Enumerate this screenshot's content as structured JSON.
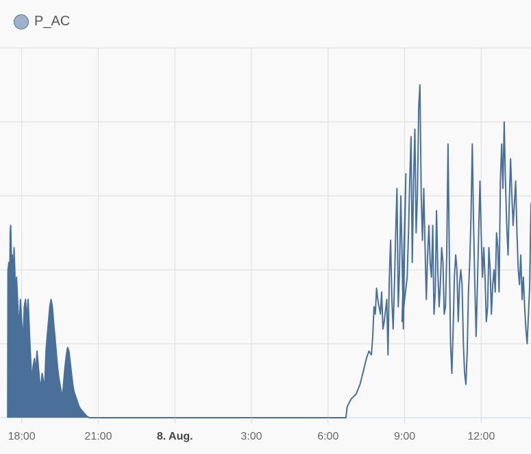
{
  "legend": {
    "label": "P_AC",
    "swatch_color": "#9fb2cc",
    "stroke_color": "#4a6f98"
  },
  "chart_data": {
    "type": "area",
    "series": [
      {
        "name": "P_AC",
        "color": "#4a7099"
      }
    ],
    "x_ticks": [
      {
        "label": "18:00",
        "hour": 18,
        "bold": false
      },
      {
        "label": "21:00",
        "hour": 21,
        "bold": false
      },
      {
        "label": "8. Aug.",
        "hour": 24,
        "bold": true
      },
      {
        "label": "3:00",
        "hour": 27,
        "bold": false
      },
      {
        "label": "6:00",
        "hour": 30,
        "bold": false
      },
      {
        "label": "9:00",
        "hour": 33,
        "bold": false
      },
      {
        "label": "12:00",
        "hour": 36,
        "bold": false
      }
    ],
    "xlim_hours": [
      17.15,
      37.95
    ],
    "ylim": [
      0,
      5
    ],
    "y_gridlines": 5,
    "y_axis_labels_visible": false,
    "grid": true,
    "legend_position": "top-left",
    "data": [
      [
        17.45,
        0
      ],
      [
        17.46,
        2.0
      ],
      [
        17.5,
        2.1
      ],
      [
        17.53,
        1.8
      ],
      [
        17.55,
        2.5
      ],
      [
        17.57,
        2.6
      ],
      [
        17.6,
        2.1
      ],
      [
        17.63,
        2.2
      ],
      [
        17.67,
        1.8
      ],
      [
        17.7,
        2.3
      ],
      [
        17.73,
        2.0
      ],
      [
        17.77,
        1.5
      ],
      [
        17.8,
        1.9
      ],
      [
        17.85,
        1.5
      ],
      [
        17.9,
        1.2
      ],
      [
        17.95,
        1.6
      ],
      [
        18.0,
        1.3
      ],
      [
        18.05,
        1.0
      ],
      [
        18.1,
        1.5
      ],
      [
        18.15,
        1.6
      ],
      [
        18.2,
        1.3
      ],
      [
        18.25,
        1.6
      ],
      [
        18.3,
        1.2
      ],
      [
        18.35,
        0.8
      ],
      [
        18.4,
        0.5
      ],
      [
        18.45,
        0.7
      ],
      [
        18.5,
        0.8
      ],
      [
        18.55,
        0.6
      ],
      [
        18.6,
        0.9
      ],
      [
        18.65,
        0.7
      ],
      [
        18.7,
        0.5
      ],
      [
        18.75,
        0.4
      ],
      [
        18.8,
        0.6
      ],
      [
        18.85,
        0.5
      ],
      [
        18.9,
        0.4
      ],
      [
        18.95,
        0.9
      ],
      [
        19.0,
        1.1
      ],
      [
        19.05,
        1.3
      ],
      [
        19.1,
        1.5
      ],
      [
        19.15,
        1.6
      ],
      [
        19.2,
        1.5
      ],
      [
        19.25,
        1.3
      ],
      [
        19.3,
        1.1
      ],
      [
        19.35,
        0.9
      ],
      [
        19.4,
        0.7
      ],
      [
        19.45,
        0.55
      ],
      [
        19.5,
        0.45
      ],
      [
        19.55,
        0.35
      ],
      [
        19.6,
        0.3
      ],
      [
        19.65,
        0.5
      ],
      [
        19.7,
        0.7
      ],
      [
        19.75,
        0.85
      ],
      [
        19.8,
        0.95
      ],
      [
        19.85,
        0.9
      ],
      [
        19.9,
        0.75
      ],
      [
        19.95,
        0.6
      ],
      [
        20.0,
        0.45
      ],
      [
        20.05,
        0.35
      ],
      [
        20.1,
        0.3
      ],
      [
        20.15,
        0.25
      ],
      [
        20.2,
        0.2
      ],
      [
        20.25,
        0.15
      ],
      [
        20.3,
        0.12
      ],
      [
        20.35,
        0.1
      ],
      [
        20.4,
        0.08
      ],
      [
        20.45,
        0.06
      ],
      [
        20.5,
        0.04
      ],
      [
        20.55,
        0.02
      ],
      [
        20.6,
        0.01
      ],
      [
        20.65,
        0
      ],
      [
        29.5,
        0
      ],
      [
        30.7,
        0
      ],
      [
        30.75,
        0.15
      ],
      [
        30.9,
        0.25
      ],
      [
        31.1,
        0.32
      ],
      [
        31.25,
        0.45
      ],
      [
        31.4,
        0.65
      ],
      [
        31.5,
        0.8
      ],
      [
        31.6,
        0.9
      ],
      [
        31.7,
        0.85
      ],
      [
        31.75,
        1.1
      ],
      [
        31.8,
        1.5
      ],
      [
        31.85,
        1.4
      ],
      [
        31.9,
        1.75
      ],
      [
        31.95,
        1.6
      ],
      [
        32.0,
        1.5
      ],
      [
        32.05,
        1.4
      ],
      [
        32.1,
        1.7
      ],
      [
        32.15,
        1.2
      ],
      [
        32.2,
        1.3
      ],
      [
        32.3,
        1.6
      ],
      [
        32.35,
        0.85
      ],
      [
        32.4,
        1.9
      ],
      [
        32.45,
        2.4
      ],
      [
        32.5,
        1.6
      ],
      [
        32.55,
        1.2
      ],
      [
        32.6,
        1.8
      ],
      [
        32.65,
        2.5
      ],
      [
        32.7,
        3.1
      ],
      [
        32.75,
        1.5
      ],
      [
        32.8,
        2.0
      ],
      [
        32.85,
        3.0
      ],
      [
        32.9,
        2.2
      ],
      [
        32.95,
        1.2
      ],
      [
        33.0,
        2.4
      ],
      [
        33.05,
        3.3
      ],
      [
        32.9,
        1.3
      ],
      [
        33.1,
        1.9
      ],
      [
        33.15,
        2.5
      ],
      [
        33.2,
        3.2
      ],
      [
        33.25,
        3.8
      ],
      [
        33.3,
        2.1
      ],
      [
        33.35,
        3.2
      ],
      [
        33.4,
        3.9
      ],
      [
        33.45,
        2.5
      ],
      [
        33.5,
        3.0
      ],
      [
        33.55,
        4.2
      ],
      [
        33.6,
        4.5
      ],
      [
        33.65,
        3.0
      ],
      [
        33.7,
        2.4
      ],
      [
        33.75,
        3.1
      ],
      [
        33.8,
        2.3
      ],
      [
        33.85,
        1.6
      ],
      [
        33.9,
        2.2
      ],
      [
        33.95,
        2.6
      ],
      [
        34.0,
        2.1
      ],
      [
        34.05,
        1.9
      ],
      [
        34.1,
        2.6
      ],
      [
        34.15,
        1.4
      ],
      [
        34.2,
        1.7
      ],
      [
        34.25,
        2.8
      ],
      [
        34.3,
        2.0
      ],
      [
        34.35,
        1.5
      ],
      [
        34.4,
        1.8
      ],
      [
        34.45,
        2.3
      ],
      [
        34.5,
        2.1
      ],
      [
        34.55,
        1.4
      ],
      [
        34.6,
        1.5
      ],
      [
        34.65,
        2.2
      ],
      [
        34.7,
        3.7
      ],
      [
        34.75,
        2.2
      ],
      [
        34.8,
        1.0
      ],
      [
        34.85,
        0.6
      ],
      [
        34.9,
        1.2
      ],
      [
        34.95,
        1.9
      ],
      [
        35.0,
        2.2
      ],
      [
        35.05,
        2.0
      ],
      [
        35.1,
        1.3
      ],
      [
        35.15,
        1.8
      ],
      [
        35.2,
        2.0
      ],
      [
        35.25,
        1.8
      ],
      [
        35.3,
        1.0
      ],
      [
        35.35,
        0.6
      ],
      [
        35.4,
        0.45
      ],
      [
        35.45,
        0.9
      ],
      [
        35.5,
        1.7
      ],
      [
        35.55,
        2.1
      ],
      [
        35.6,
        2.7
      ],
      [
        35.65,
        3.7
      ],
      [
        35.7,
        2.6
      ],
      [
        35.75,
        1.8
      ],
      [
        35.8,
        1.1
      ],
      [
        35.85,
        1.8
      ],
      [
        35.9,
        2.5
      ],
      [
        35.95,
        3.2
      ],
      [
        36.0,
        2.5
      ],
      [
        36.05,
        1.9
      ],
      [
        36.1,
        2.3
      ],
      [
        36.15,
        1.9
      ],
      [
        36.2,
        1.3
      ],
      [
        36.25,
        1.5
      ],
      [
        36.3,
        2.3
      ],
      [
        36.35,
        2.0
      ],
      [
        36.4,
        1.4
      ],
      [
        36.45,
        1.8
      ],
      [
        36.5,
        2.0
      ],
      [
        36.55,
        1.7
      ],
      [
        36.6,
        2.5
      ],
      [
        36.65,
        2.3
      ],
      [
        36.7,
        1.7
      ],
      [
        36.75,
        3.2
      ],
      [
        36.8,
        3.7
      ],
      [
        36.85,
        3.1
      ],
      [
        36.9,
        4.0
      ],
      [
        36.95,
        3.2
      ],
      [
        37.0,
        2.6
      ],
      [
        37.05,
        2.2
      ],
      [
        37.1,
        2.9
      ],
      [
        37.15,
        3.5
      ],
      [
        37.2,
        3.0
      ],
      [
        37.25,
        2.6
      ],
      [
        37.3,
        2.9
      ],
      [
        37.35,
        3.2
      ],
      [
        37.4,
        2.5
      ],
      [
        37.45,
        2.0
      ],
      [
        37.5,
        1.8
      ],
      [
        37.55,
        2.2
      ],
      [
        37.6,
        1.6
      ],
      [
        37.65,
        1.9
      ],
      [
        37.7,
        1.5
      ],
      [
        37.75,
        1.2
      ],
      [
        37.8,
        1.0
      ],
      [
        37.85,
        1.4
      ],
      [
        37.9,
        1.8
      ],
      [
        37.95,
        2.9
      ]
    ]
  }
}
